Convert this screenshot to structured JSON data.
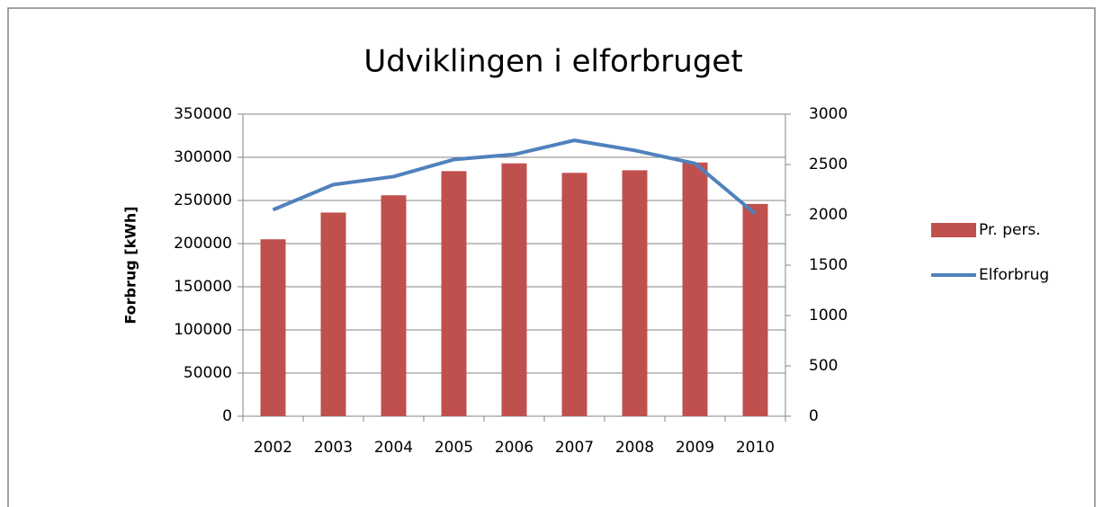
{
  "chart_data": {
    "type": "bar-line",
    "title": "Udviklingen i elforbruget",
    "y_label": "Forbrug [kWh]",
    "categories": [
      "2002",
      "2003",
      "2004",
      "2005",
      "2006",
      "2007",
      "2008",
      "2009",
      "2010"
    ],
    "series": [
      {
        "name": "Pr. pers.",
        "type": "bar",
        "color": "#c0504d",
        "values": [
          205000,
          236000,
          256000,
          284000,
          293000,
          282000,
          285000,
          294000,
          246000
        ]
      },
      {
        "name": "Elforbrug",
        "type": "line",
        "axis": "y2",
        "color": "#4f81bd",
        "values": [
          2050,
          2300,
          2380,
          2550,
          2600,
          2740,
          2640,
          2510,
          2010
        ]
      }
    ],
    "ylim": [
      0,
      350000
    ],
    "yticks": [
      0,
      50000,
      100000,
      150000,
      200000,
      250000,
      300000,
      350000
    ],
    "y2lim": [
      0,
      3000
    ],
    "y2ticks": [
      0,
      500,
      1000,
      1500,
      2000,
      2500,
      3000
    ],
    "grid": true,
    "legend": "right"
  }
}
